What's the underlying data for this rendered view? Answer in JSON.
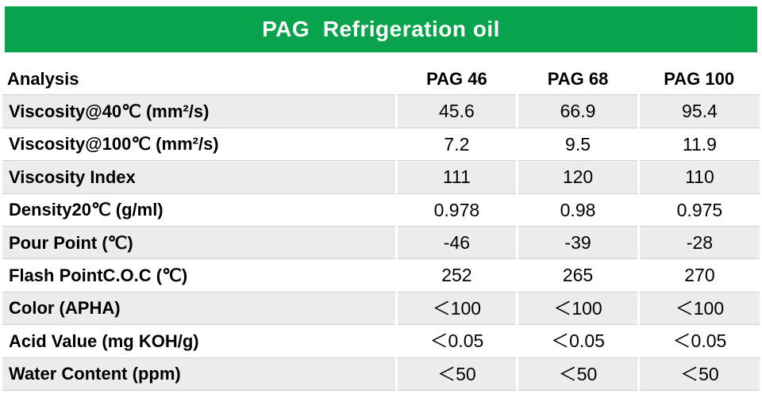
{
  "title": "PAG  Refrigeration oil",
  "colors": {
    "banner_green": "#0aa34d",
    "stripe_gray": "#ececec",
    "text_black": "#000000",
    "title_white": "#ffffff"
  },
  "table": {
    "headers": [
      "Analysis",
      "PAG 46",
      "PAG 68",
      "PAG 100"
    ],
    "rows": [
      {
        "label": "Viscosity@40℃ (mm²/s)",
        "values": [
          "45.6",
          "66.9",
          "95.4"
        ]
      },
      {
        "label": "Viscosity@100℃ (mm²/s)",
        "values": [
          "7.2",
          "9.5",
          "11.9"
        ]
      },
      {
        "label": "Viscosity Index",
        "values": [
          "111",
          "120",
          "110"
        ]
      },
      {
        "label": "Density20℃ (g/ml)",
        "values": [
          "0.978",
          "0.98",
          "0.975"
        ]
      },
      {
        "label": "Pour Point (℃)",
        "values": [
          "-46",
          "-39",
          "-28"
        ]
      },
      {
        "label": "Flash PointC.O.C (℃)",
        "values": [
          "252",
          "265",
          "270"
        ]
      },
      {
        "label": "Color (APHA)",
        "values": [
          "＜100",
          "＜100",
          "＜100"
        ]
      },
      {
        "label": "Acid Value (mg KOH/g)",
        "values": [
          "＜0.05",
          "＜0.05",
          "＜0.05"
        ]
      },
      {
        "label": "Water Content (ppm)",
        "values": [
          "＜50",
          "＜50",
          "＜50"
        ]
      }
    ]
  }
}
